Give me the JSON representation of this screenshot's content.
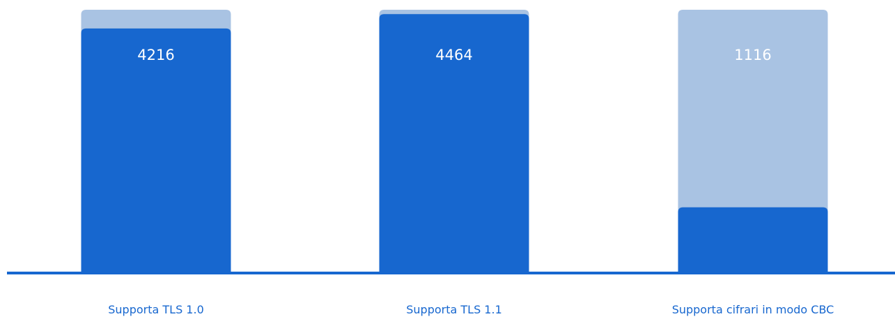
{
  "chart_data": {
    "type": "bar",
    "categories": [
      "Supporta TLS 1.0",
      "Supporta TLS 1.1",
      "Supporta cifrari in modo CBC"
    ],
    "series": [
      {
        "values": [
          4216,
          4464,
          1116
        ]
      }
    ],
    "background_total": 4540,
    "ylim": [
      0,
      4540
    ],
    "title": "",
    "xlabel": "",
    "ylabel": "",
    "grid": false,
    "legend": "none",
    "colors": {
      "bar": "#1767cf",
      "background": "#a9c3e3",
      "label": "#1767cf",
      "value_text": "#ffffff"
    }
  }
}
